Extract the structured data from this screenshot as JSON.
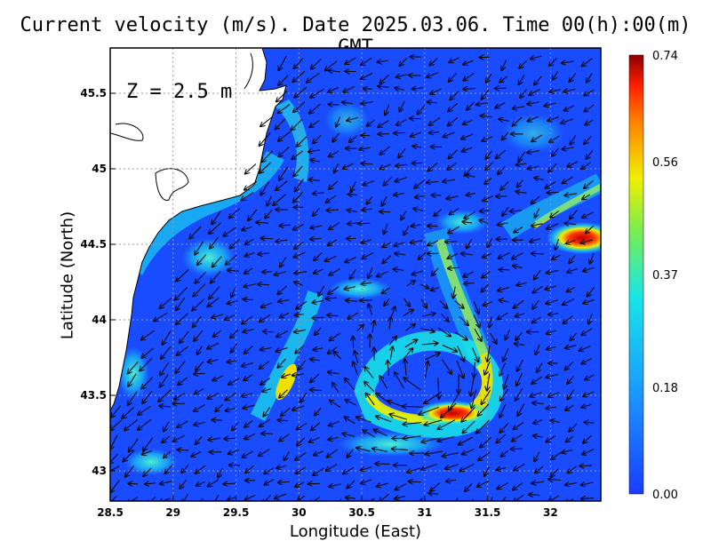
{
  "title": "Current velocity (m/s). Date 2025.03.06. Time 00(h):00(m) GMT",
  "xlabel": "Longitude (East)",
  "ylabel": "Latitude (North)",
  "depth_label": "Z = 2.5 m",
  "colors": {
    "land": "#ffffff",
    "coast": "#000000",
    "grid": "#9a9a9a",
    "scale_low": "#1a3cff",
    "scale_mid": "#19e6e6",
    "scale_yellow": "#f0f000",
    "scale_red": "#ff2000",
    "scale_high": "#8b0000"
  },
  "chart_data": {
    "type": "heatmap",
    "xlim": [
      28.5,
      32.4
    ],
    "ylim": [
      42.8,
      45.8
    ],
    "x_ticks": [
      "28.5",
      "29",
      "29.5",
      "30",
      "30.5",
      "31",
      "31.5",
      "32"
    ],
    "y_ticks": [
      "43",
      "43.5",
      "44",
      "44.5",
      "45",
      "45.5"
    ],
    "colorbar": {
      "min": 0.0,
      "max": 0.74,
      "ticks": [
        "0.00",
        "0.18",
        "0.37",
        "0.56",
        "0.74"
      ]
    },
    "grid": true,
    "features": [
      {
        "type": "eddy",
        "center_lon": 31.05,
        "center_lat": 43.6,
        "rotation": "anticyclonic",
        "max_speed": 0.6
      },
      {
        "type": "jet",
        "lon": 32.3,
        "lat": 44.5,
        "max_speed": 0.74
      },
      {
        "type": "jet",
        "lon": 29.9,
        "lat": 43.6,
        "max_speed": 0.5
      }
    ]
  }
}
